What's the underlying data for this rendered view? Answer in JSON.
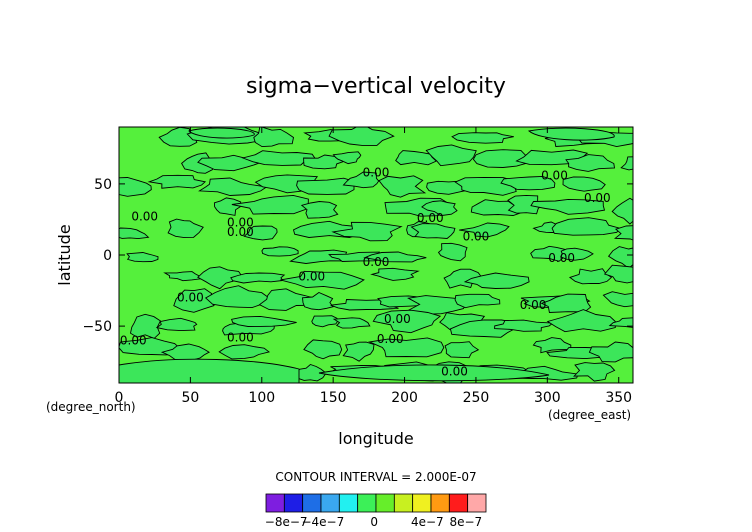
{
  "chart_data": {
    "type": "heatmap",
    "title": "sigma−vertical velocity",
    "xlabel": "longitude",
    "ylabel": "latitude",
    "x_unit": "(degree_east)",
    "y_unit": "(degree_north)",
    "xlim": [
      0,
      360
    ],
    "ylim": [
      -90,
      90
    ],
    "x_ticks": [
      0,
      50,
      100,
      150,
      200,
      250,
      300,
      350
    ],
    "y_ticks": [
      50,
      0,
      -50
    ],
    "contour_interval_text": "CONTOUR INTERVAL = 2.000E-07",
    "contour_labels": [
      {
        "x": 180,
        "y": 58,
        "text": "0.00"
      },
      {
        "x": 305,
        "y": 56,
        "text": "0.00"
      },
      {
        "x": 335,
        "y": 40,
        "text": "0.00"
      },
      {
        "x": 18,
        "y": 27,
        "text": "0.00"
      },
      {
        "x": 85,
        "y": 16,
        "text": "0.00"
      },
      {
        "x": 85,
        "y": 23,
        "text": "0.00"
      },
      {
        "x": 218,
        "y": 26,
        "text": "0.00"
      },
      {
        "x": 250,
        "y": 13,
        "text": "0.00"
      },
      {
        "x": 180,
        "y": -5,
        "text": "0.00"
      },
      {
        "x": 310,
        "y": -2,
        "text": "0.00"
      },
      {
        "x": 135,
        "y": -15,
        "text": "0.00"
      },
      {
        "x": 50,
        "y": -30,
        "text": "0.00"
      },
      {
        "x": 290,
        "y": -35,
        "text": "0.00"
      },
      {
        "x": 195,
        "y": -45,
        "text": "0.00"
      },
      {
        "x": 10,
        "y": -60,
        "text": "0.00"
      },
      {
        "x": 85,
        "y": -58,
        "text": "0.00"
      },
      {
        "x": 190,
        "y": -59,
        "text": "0.00"
      },
      {
        "x": 235,
        "y": -82,
        "text": "0.00"
      }
    ],
    "colorbar": {
      "tick_labels": [
        "−8e−7",
        "−4e−7",
        "0",
        "4e−7",
        "8e−7"
      ],
      "colors": [
        "#7e1ee0",
        "#1e1ee6",
        "#1e6ee6",
        "#3aa8ef",
        "#22f0f0",
        "#3cf058",
        "#66ee2a",
        "#c8f020",
        "#f0f020",
        "#ff9a12",
        "#ff1c1c",
        "#ffa8a8"
      ]
    },
    "field_color": "#55f03c",
    "region_color": "#3ce65a",
    "grid": false
  }
}
